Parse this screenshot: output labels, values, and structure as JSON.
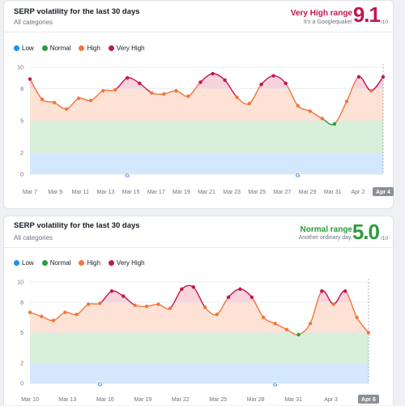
{
  "colors": {
    "low": "#1a91f0",
    "normal": "#2b9d3a",
    "high": "#f2763c",
    "very_high": "#c1174d",
    "low_band": "#d4e8fd",
    "normal_band": "#d8f0d9",
    "high_band": "#fde2d5",
    "very_high_band": "#f9d3dc"
  },
  "icons": {
    "google_marker": "google-g-icon"
  },
  "cards": [
    {
      "title": "SERP volatility for the last 30 days",
      "subtitle": "All categories",
      "range_label": "Very High range",
      "range_desc": "It's a Googlequake!",
      "score": "9.1",
      "score_denom": "/10",
      "range_color": "#c1174d",
      "legend": [
        "Low",
        "Normal",
        "High",
        "Very High"
      ]
    },
    {
      "title": "SERP volatility for the last 30 days",
      "subtitle": "All categories",
      "range_label": "Normal range",
      "range_desc": "Another ordinary day.",
      "score": "5.0",
      "score_denom": "/10",
      "range_color": "#2b9d3a",
      "legend": [
        "Low",
        "Normal",
        "High",
        "Very High"
      ]
    }
  ],
  "chart_data": [
    {
      "type": "area",
      "y_ticks": [
        "0",
        "2",
        "5",
        "8",
        "10"
      ],
      "bands": [
        {
          "name": "Low",
          "from": 0,
          "to": 2
        },
        {
          "name": "Normal",
          "from": 2,
          "to": 5
        },
        {
          "name": "High",
          "from": 5,
          "to": 8
        },
        {
          "name": "Very High",
          "from": 8,
          "to": 10
        }
      ],
      "x_labels": [
        "Mar 7",
        "Mar 9",
        "Mar 11",
        "Mar 13",
        "Mar 15",
        "Mar 17",
        "Mar 19",
        "Mar 21",
        "Mar 23",
        "Mar 25",
        "Mar 27",
        "Mar 29",
        "Mar 31",
        "Apr 2",
        "Apr 4"
      ],
      "selected_label": "Apr 4",
      "values": [
        8.9,
        7.0,
        6.7,
        6.1,
        7.1,
        6.9,
        7.8,
        7.9,
        9.0,
        8.5,
        7.6,
        7.5,
        7.8,
        7.3,
        8.6,
        9.4,
        8.8,
        7.2,
        6.6,
        8.4,
        9.2,
        8.5,
        6.4,
        5.9,
        5.2,
        4.7,
        6.8,
        9.1,
        7.8,
        9.1
      ],
      "google_markers_at": [
        8,
        22
      ],
      "ylim": [
        0,
        10
      ]
    },
    {
      "type": "area",
      "y_ticks": [
        "0",
        "2",
        "5",
        "8",
        "10"
      ],
      "bands": [
        {
          "name": "Low",
          "from": 0,
          "to": 2
        },
        {
          "name": "Normal",
          "from": 2,
          "to": 5
        },
        {
          "name": "High",
          "from": 5,
          "to": 8
        },
        {
          "name": "Very High",
          "from": 8,
          "to": 10
        }
      ],
      "x_labels": [
        "Mar 10",
        "Mar 13",
        "Mar 16",
        "Mar 19",
        "Mar 22",
        "Mar 25",
        "Mar 28",
        "Mar 31",
        "Apr 3",
        "Apr 6"
      ],
      "selected_label": "Apr 6",
      "values": [
        7.0,
        6.6,
        6.2,
        7.0,
        6.8,
        7.8,
        7.9,
        9.1,
        8.6,
        7.7,
        7.6,
        7.8,
        7.4,
        9.3,
        9.5,
        7.5,
        6.8,
        8.5,
        9.3,
        8.5,
        6.5,
        5.9,
        5.3,
        4.8,
        5.9,
        9.1,
        7.8,
        9.1,
        6.5,
        5.0
      ],
      "google_markers_at": [
        6,
        21
      ],
      "ylim": [
        0,
        10
      ]
    }
  ]
}
